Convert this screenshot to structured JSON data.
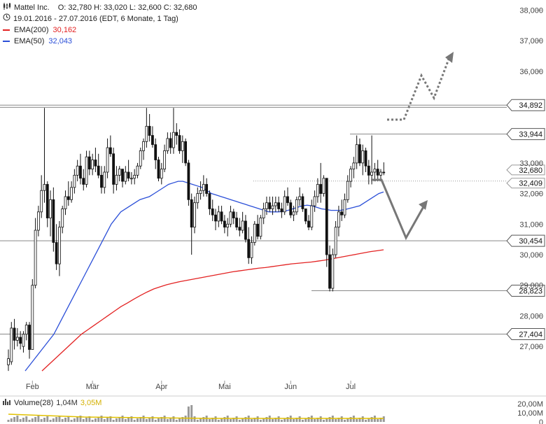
{
  "header": {
    "icon": "candlestick-icon",
    "symbol": "Mattel Inc.",
    "ohlc": "O: 32,780  H: 33,020  L: 32,600  C: 32,680",
    "range_icon": "clock-icon",
    "range": "19.01.2016 - 27.07.2016 (EDT, 6 Monate, 1 Tag)",
    "ema200_label": "EMA(200)",
    "ema200_value": "30,162",
    "ema50_label": "EMA(50)",
    "ema50_value": "32,043"
  },
  "volume_legend": {
    "icon": "volume-bars-icon",
    "label": "Volume(28)",
    "value1": "1,04M",
    "value2": "3,05M"
  },
  "colors": {
    "ema200": "#e32222",
    "ema50": "#2b4fd8",
    "candle": "#111111",
    "hline": "#888888",
    "arrow": "#777777",
    "volume_avg": "#e0c000",
    "volume_bar": "#999999"
  },
  "chart_data": {
    "type": "candlestick",
    "y_axis": {
      "ylim": [
        26500,
        38100
      ],
      "ticks": [
        "27,000",
        "28,000",
        "29,000",
        "30,000",
        "31,000",
        "32,000",
        "33,000",
        "36,000",
        "37,000",
        "38,000"
      ],
      "tick_values": [
        27000,
        28000,
        29000,
        30000,
        31000,
        32000,
        33000,
        36000,
        37000,
        38000
      ]
    },
    "x_axis": {
      "labels": [
        "Feb",
        "Mär",
        "Apr",
        "Mai",
        "Jun",
        "Jul"
      ],
      "label_index": [
        8,
        28,
        51,
        72,
        94,
        114
      ]
    },
    "level_lines": [
      {
        "value": 34892,
        "label": "34,892"
      },
      {
        "value": 34820,
        "label": ""
      },
      {
        "value": 33944,
        "label": "33,944"
      },
      {
        "value": 30454,
        "label": "30,454"
      },
      {
        "value": 28823,
        "label": "28,823"
      },
      {
        "value": 27404,
        "label": "27,404"
      }
    ],
    "price_labels": [
      {
        "value": 32680,
        "label": "32,680"
      },
      {
        "value": 32409,
        "label": "32,409"
      }
    ],
    "candles": [
      [
        26.4,
        26.9,
        26.2,
        26.6
      ],
      [
        26.5,
        27.8,
        26.4,
        27.6
      ],
      [
        27.6,
        27.9,
        26.9,
        27.2
      ],
      [
        27.2,
        27.6,
        27.0,
        27.3
      ],
      [
        27.3,
        27.5,
        26.9,
        27.1
      ],
      [
        27.0,
        27.5,
        26.8,
        27.4
      ],
      [
        27.4,
        27.8,
        27.2,
        27.7
      ],
      [
        27.7,
        27.8,
        26.6,
        26.9
      ],
      [
        26.9,
        29.2,
        28.3,
        29.0
      ],
      [
        29.0,
        31.2,
        28.9,
        30.8
      ],
      [
        30.8,
        31.6,
        30.6,
        31.4
      ],
      [
        31.4,
        32.6,
        31.2,
        32.1
      ],
      [
        32.1,
        34.8,
        31.7,
        32.3
      ],
      [
        32.3,
        32.4,
        30.9,
        31.2
      ],
      [
        31.2,
        32.1,
        30.6,
        31.8
      ],
      [
        31.8,
        32.2,
        30.1,
        30.4
      ],
      [
        30.4,
        31.0,
        29.5,
        29.7
      ],
      [
        29.7,
        31.1,
        29.3,
        30.9
      ],
      [
        30.9,
        31.6,
        30.7,
        31.5
      ],
      [
        31.5,
        32.1,
        31.3,
        31.9
      ],
      [
        31.9,
        32.4,
        31.6,
        31.8
      ],
      [
        31.8,
        32.4,
        31.7,
        32.2
      ],
      [
        32.2,
        32.8,
        32.0,
        32.6
      ],
      [
        32.6,
        33.1,
        32.4,
        32.9
      ],
      [
        32.9,
        33.3,
        32.3,
        32.5
      ],
      [
        32.5,
        32.8,
        32.1,
        32.3
      ],
      [
        32.3,
        33.4,
        32.2,
        33.2
      ],
      [
        33.2,
        33.4,
        32.6,
        32.8
      ],
      [
        32.8,
        33.3,
        32.6,
        33.1
      ],
      [
        33.1,
        33.5,
        32.7,
        32.9
      ],
      [
        32.9,
        33.3,
        32.5,
        32.6
      ],
      [
        32.6,
        32.9,
        32.0,
        32.2
      ],
      [
        32.2,
        32.9,
        32.0,
        32.7
      ],
      [
        32.7,
        33.8,
        32.5,
        33.5
      ],
      [
        33.5,
        33.9,
        33.2,
        33.3
      ],
      [
        33.3,
        33.5,
        32.0,
        32.3
      ],
      [
        32.3,
        32.9,
        32.1,
        32.6
      ],
      [
        32.6,
        32.9,
        32.4,
        32.8
      ],
      [
        32.8,
        32.8,
        32.2,
        32.4
      ],
      [
        32.4,
        32.9,
        32.3,
        32.7
      ],
      [
        32.7,
        33.1,
        32.4,
        32.5
      ],
      [
        32.5,
        32.7,
        32.3,
        32.5
      ],
      [
        32.5,
        32.8,
        32.3,
        32.6
      ],
      [
        32.6,
        33.0,
        32.5,
        32.9
      ],
      [
        32.9,
        33.5,
        32.8,
        33.4
      ],
      [
        33.4,
        33.8,
        33.1,
        33.7
      ],
      [
        33.7,
        34.8,
        33.5,
        34.2
      ],
      [
        34.2,
        34.6,
        33.7,
        33.9
      ],
      [
        33.9,
        34.2,
        33.5,
        33.6
      ],
      [
        33.6,
        33.8,
        32.8,
        33.1
      ],
      [
        33.1,
        33.2,
        32.4,
        32.5
      ],
      [
        32.5,
        33.0,
        32.3,
        32.8
      ],
      [
        32.8,
        33.6,
        32.7,
        33.4
      ],
      [
        33.4,
        34.0,
        33.3,
        33.8
      ],
      [
        33.8,
        34.0,
        33.3,
        33.5
      ],
      [
        33.5,
        34.8,
        33.3,
        34.0
      ],
      [
        34.0,
        34.3,
        33.6,
        33.9
      ],
      [
        33.9,
        34.1,
        33.3,
        33.4
      ],
      [
        33.4,
        33.9,
        33.0,
        33.7
      ],
      [
        33.7,
        33.8,
        32.9,
        33.0
      ],
      [
        33.0,
        33.1,
        31.6,
        31.8
      ],
      [
        31.8,
        32.0,
        30.0,
        30.9
      ],
      [
        30.9,
        31.9,
        30.7,
        31.7
      ],
      [
        31.7,
        32.2,
        31.5,
        32.0
      ],
      [
        32.0,
        32.4,
        31.8,
        32.1
      ],
      [
        32.1,
        32.6,
        31.9,
        32.3
      ],
      [
        32.3,
        32.5,
        31.9,
        32.0
      ],
      [
        32.0,
        32.1,
        31.3,
        31.5
      ],
      [
        31.5,
        31.8,
        31.1,
        31.3
      ],
      [
        31.3,
        31.5,
        30.8,
        31.1
      ],
      [
        31.1,
        31.6,
        30.9,
        31.4
      ],
      [
        31.4,
        31.6,
        31.0,
        31.1
      ],
      [
        31.1,
        31.3,
        30.7,
        30.9
      ],
      [
        30.9,
        31.2,
        30.6,
        31.0
      ],
      [
        31.0,
        31.6,
        30.9,
        31.4
      ],
      [
        31.4,
        31.5,
        31.0,
        31.2
      ],
      [
        31.2,
        31.4,
        30.8,
        30.9
      ],
      [
        30.9,
        31.2,
        30.6,
        30.8
      ],
      [
        30.8,
        31.4,
        30.7,
        31.1
      ],
      [
        31.1,
        31.3,
        30.4,
        30.5
      ],
      [
        30.5,
        30.9,
        29.7,
        29.9
      ],
      [
        29.9,
        30.6,
        29.7,
        30.4
      ],
      [
        30.4,
        31.1,
        30.3,
        31.0
      ],
      [
        31.0,
        31.3,
        30.5,
        30.6
      ],
      [
        30.6,
        31.3,
        30.5,
        31.2
      ],
      [
        31.2,
        31.7,
        31.0,
        31.5
      ],
      [
        31.5,
        31.9,
        31.3,
        31.7
      ],
      [
        31.7,
        31.9,
        31.4,
        31.5
      ],
      [
        31.5,
        31.9,
        31.3,
        31.6
      ],
      [
        31.6,
        31.9,
        31.4,
        31.7
      ],
      [
        31.7,
        31.9,
        31.4,
        31.5
      ],
      [
        31.5,
        31.7,
        31.2,
        31.4
      ],
      [
        31.4,
        32.1,
        31.3,
        31.9
      ],
      [
        31.9,
        32.2,
        31.6,
        31.7
      ],
      [
        31.7,
        31.8,
        31.2,
        31.3
      ],
      [
        31.3,
        31.6,
        31.1,
        31.4
      ],
      [
        31.4,
        31.9,
        31.3,
        31.8
      ],
      [
        31.8,
        32.2,
        31.6,
        31.9
      ],
      [
        31.9,
        32.0,
        31.4,
        31.5
      ],
      [
        31.5,
        31.5,
        31.0,
        31.1
      ],
      [
        31.1,
        31.3,
        30.8,
        30.9
      ],
      [
        30.9,
        31.8,
        30.8,
        31.6
      ],
      [
        31.6,
        32.1,
        31.4,
        31.9
      ],
      [
        31.9,
        32.5,
        31.7,
        32.3
      ],
      [
        32.3,
        33.0,
        31.7,
        32.0
      ],
      [
        32.0,
        32.6,
        31.9,
        32.5
      ],
      [
        32.5,
        32.5,
        29.6,
        30.0
      ],
      [
        30.0,
        30.3,
        28.8,
        28.9
      ],
      [
        28.9,
        30.2,
        28.8,
        30.0
      ],
      [
        30.0,
        31.1,
        29.9,
        30.9
      ],
      [
        30.9,
        31.6,
        30.6,
        31.4
      ],
      [
        31.4,
        31.8,
        31.1,
        31.3
      ],
      [
        31.3,
        32.0,
        31.2,
        31.8
      ],
      [
        31.8,
        32.6,
        31.7,
        32.4
      ],
      [
        32.4,
        32.9,
        32.2,
        32.8
      ],
      [
        32.8,
        33.2,
        32.5,
        33.0
      ],
      [
        33.0,
        33.9,
        32.8,
        33.6
      ],
      [
        33.6,
        33.8,
        32.9,
        33.0
      ],
      [
        33.0,
        33.6,
        32.6,
        33.4
      ],
      [
        33.4,
        33.5,
        32.7,
        32.9
      ],
      [
        32.9,
        33.1,
        32.3,
        32.6
      ],
      [
        32.6,
        33.9,
        32.3,
        32.7
      ],
      [
        32.7,
        33.0,
        32.4,
        32.8
      ],
      [
        32.8,
        33.1,
        32.4,
        32.6
      ],
      [
        32.6,
        32.8,
        32.4,
        32.7
      ],
      [
        32.7,
        33.02,
        32.6,
        32.68
      ]
    ],
    "ema50": [
      26.2,
      26.4,
      26.6,
      26.8,
      27.0,
      27.2,
      27.4,
      27.7,
      28.0,
      28.3,
      28.6,
      28.9,
      29.2,
      29.5,
      29.8,
      30.1,
      30.4,
      30.7,
      31.0,
      31.2,
      31.4,
      31.5,
      31.6,
      31.7,
      31.8,
      31.85,
      31.9,
      32.0,
      32.1,
      32.2,
      32.3,
      32.35,
      32.4,
      32.4,
      32.35,
      32.3,
      32.25,
      32.2,
      32.1,
      32.0,
      31.95,
      31.9,
      31.85,
      31.8,
      31.75,
      31.7,
      31.65,
      31.6,
      31.55,
      31.5,
      31.45,
      31.4,
      31.4,
      31.4,
      31.42,
      31.45,
      31.5,
      31.55,
      31.6,
      31.62,
      31.6,
      31.55,
      31.5,
      31.48,
      31.45,
      31.45,
      31.45,
      31.48,
      31.52,
      31.56,
      31.6,
      31.7,
      31.8,
      31.9,
      32.0,
      32.05
    ],
    "ema200": [
      26.2,
      26.4,
      26.6,
      26.8,
      27.0,
      27.2,
      27.4,
      27.55,
      27.7,
      27.85,
      28.0,
      28.15,
      28.3,
      28.42,
      28.55,
      28.67,
      28.78,
      28.88,
      28.95,
      29.02,
      29.07,
      29.12,
      29.16,
      29.2,
      29.24,
      29.28,
      29.32,
      29.36,
      29.4,
      29.44,
      29.47,
      29.5,
      29.53,
      29.56,
      29.58,
      29.61,
      29.64,
      29.67,
      29.7,
      29.72,
      29.74,
      29.76,
      29.79,
      29.82,
      29.86,
      29.9,
      29.94,
      29.98,
      30.02,
      30.06,
      30.1,
      30.13,
      30.16
    ],
    "forecast": {
      "dotted_path": [
        [
          553,
          171
        ],
        [
          577,
          171
        ],
        [
          602,
          108
        ],
        [
          620,
          140
        ],
        [
          642,
          82
        ]
      ],
      "solid_path": [
        [
          530,
          257
        ],
        [
          545,
          257
        ],
        [
          580,
          340
        ],
        [
          607,
          292
        ]
      ]
    },
    "volume_axis": {
      "ticks": [
        "20,00M",
        "10,00M",
        "0"
      ]
    }
  }
}
